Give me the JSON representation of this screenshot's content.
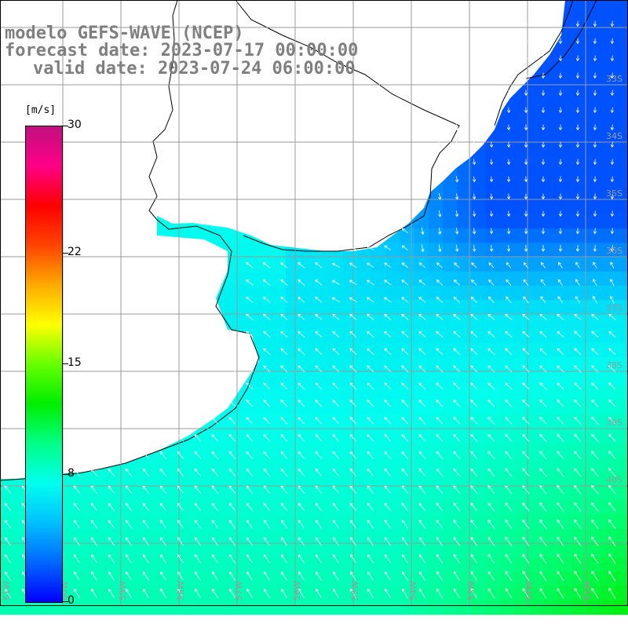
{
  "title": {
    "line1": "modelo GEFS-WAVE (NCEP)",
    "line2": "forecast date: 2023-07-17 00:00:00",
    "line3": "valid date: 2023-07-24 06:00:00"
  },
  "colorbar": {
    "units": "[m/s]",
    "min": 0,
    "max": 30,
    "tick_labels": [
      "30",
      "22",
      "15",
      "8",
      "0"
    ],
    "tick_values": [
      30,
      22,
      15,
      8,
      0
    ],
    "colors": [
      "#0000ff",
      "#0066ff",
      "#00c0ff",
      "#00ffee",
      "#00ff88",
      "#00ee00",
      "#66ff00",
      "#ffff00",
      "#ffaa00",
      "#ff4400",
      "#ff0000",
      "#ff0088",
      "#c0107f"
    ]
  },
  "map": {
    "lon_labels": [
      "61W",
      "60W",
      "59W",
      "58W",
      "57W",
      "56W",
      "55W",
      "54W",
      "53W",
      "52W",
      "51W",
      "50W"
    ],
    "lat_labels": [
      "33S",
      "34S",
      "35S",
      "36S",
      "37S",
      "38S",
      "39S",
      "40S"
    ],
    "field": "wind speed and direction",
    "land_color": "#ffffff",
    "grid_color": "#999999",
    "coast_color": "#000000"
  }
}
